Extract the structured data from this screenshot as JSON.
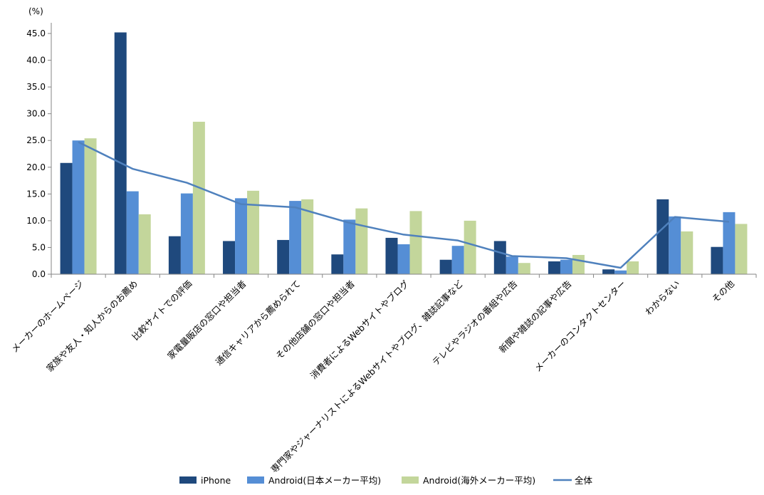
{
  "chart_data": {
    "type": "bar",
    "unit_label": "(%)",
    "ylim": [
      0,
      45
    ],
    "yticks": [
      "0.0",
      "5.0",
      "10.0",
      "15.0",
      "20.0",
      "25.0",
      "30.0",
      "35.0",
      "40.0",
      "45.0"
    ],
    "categories": [
      "メーカーのホームページ",
      "家族や友人・知人からのお薦め",
      "比較サイトでの評価",
      "家電量販店の窓口や担当者",
      "通信キャリアから薦められて",
      "その他店舗の窓口や担当者",
      "消費者によるWebサイトやブログ",
      "専門家やジャーナリストによるWebサイトやブログ、雑誌記事など",
      "テレビやラジオの番組や広告",
      "新聞や雑誌の記事や広告",
      "メーカーのコンタクトセンター",
      "わからない",
      "その他"
    ],
    "series": [
      {
        "name": "iPhone",
        "type": "bar",
        "color": "#1F497D",
        "values": [
          20.8,
          45.2,
          7.1,
          6.2,
          6.4,
          3.7,
          6.8,
          2.7,
          6.2,
          2.4,
          0.9,
          14.0,
          5.1
        ]
      },
      {
        "name": "Android(日本メーカー平均)",
        "type": "bar",
        "color": "#558ED5",
        "values": [
          25.0,
          15.5,
          15.1,
          14.2,
          13.7,
          10.2,
          5.6,
          5.3,
          3.3,
          2.7,
          0.7,
          10.8,
          11.6
        ]
      },
      {
        "name": "Android(海外メーカー平均)",
        "type": "bar",
        "color": "#C3D69B",
        "values": [
          25.4,
          11.2,
          28.5,
          15.6,
          14.0,
          12.3,
          11.8,
          10.0,
          2.1,
          3.6,
          2.4,
          8.0,
          9.4
        ]
      },
      {
        "name": "全体",
        "type": "line",
        "color": "#4F81BD",
        "values": [
          24.7,
          19.7,
          17.1,
          13.1,
          12.5,
          9.6,
          7.4,
          6.3,
          3.4,
          3.0,
          1.2,
          10.7,
          9.8
        ]
      }
    ],
    "grid": false,
    "legend_position": "bottom"
  }
}
